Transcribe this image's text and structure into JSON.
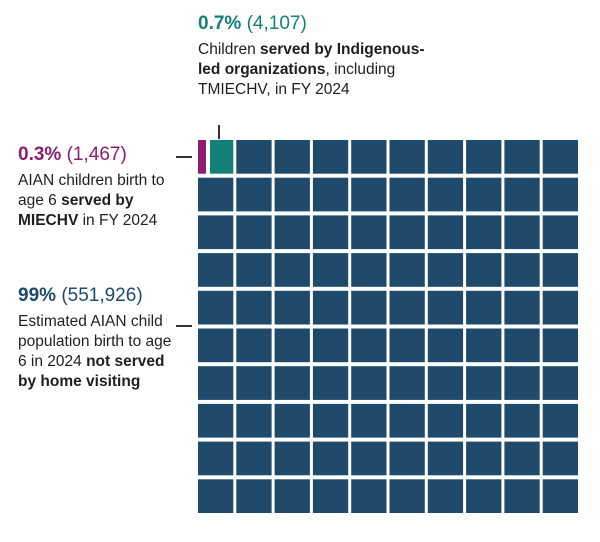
{
  "chart_data": {
    "type": "waffle",
    "grid": {
      "rows": 10,
      "cols": 10
    },
    "segments": [
      {
        "pct": "0.3%",
        "count": "(1,467)",
        "value": 1467,
        "color": "#8b1f6d",
        "text": [
          {
            "t": "AIAN children birth to age 6 ",
            "b": false
          },
          {
            "t": "served by MIECHV",
            "b": true
          },
          {
            "t": " in FY 2024",
            "b": false
          }
        ]
      },
      {
        "pct": "0.7%",
        "count": "(4,107)",
        "value": 4107,
        "color": "#138079",
        "text": [
          {
            "t": "Children ",
            "b": false
          },
          {
            "t": "served by Indigenous-led organizations",
            "b": true
          },
          {
            "t": ", including TMIECHV, in FY 2024",
            "b": false
          }
        ]
      },
      {
        "pct": "99%",
        "count": "(551,926)",
        "value": 551926,
        "color": "#1f4a6b",
        "text": [
          {
            "t": "Estimated AIAN child population birth to age 6 in 2024 ",
            "b": false
          },
          {
            "t": "not served by home visiting",
            "b": true
          }
        ]
      }
    ]
  }
}
